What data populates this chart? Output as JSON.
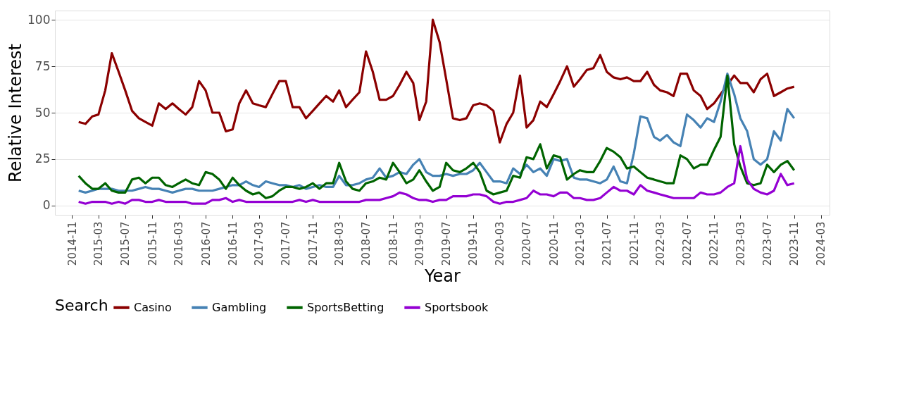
{
  "chart_data": {
    "type": "line",
    "xlabel": "Year",
    "ylabel": "Relative Interest",
    "legend_title": "Search",
    "legend": "bottom",
    "grid": "y",
    "line_style": "solid",
    "x": [
      "2014-12",
      "2015-01",
      "2015-02",
      "2015-03",
      "2015-04",
      "2015-05",
      "2015-06",
      "2015-07",
      "2015-08",
      "2015-09",
      "2015-10",
      "2015-11",
      "2015-12",
      "2016-01",
      "2016-02",
      "2016-03",
      "2016-04",
      "2016-05",
      "2016-06",
      "2016-07",
      "2016-08",
      "2016-09",
      "2016-10",
      "2016-11",
      "2016-12",
      "2017-01",
      "2017-02",
      "2017-03",
      "2017-04",
      "2017-05",
      "2017-06",
      "2017-07",
      "2017-08",
      "2017-09",
      "2017-10",
      "2017-11",
      "2017-12",
      "2018-01",
      "2018-02",
      "2018-03",
      "2018-04",
      "2018-05",
      "2018-06",
      "2018-07",
      "2018-08",
      "2018-09",
      "2018-10",
      "2018-11",
      "2018-12",
      "2019-01",
      "2019-02",
      "2019-03",
      "2019-04",
      "2019-05",
      "2019-06",
      "2019-07",
      "2019-08",
      "2019-09",
      "2019-10",
      "2019-11",
      "2019-12",
      "2020-01",
      "2020-02",
      "2020-03",
      "2020-04",
      "2020-05",
      "2020-06",
      "2020-07",
      "2020-08",
      "2020-09",
      "2020-10",
      "2020-11",
      "2020-12",
      "2021-01",
      "2021-02",
      "2021-03",
      "2021-04",
      "2021-05",
      "2021-06",
      "2021-07",
      "2021-08",
      "2021-09",
      "2021-10",
      "2021-11",
      "2021-12",
      "2022-01",
      "2022-02",
      "2022-03",
      "2022-04",
      "2022-05",
      "2022-06",
      "2022-07",
      "2022-08",
      "2022-09",
      "2022-10",
      "2022-11",
      "2022-12",
      "2023-01",
      "2023-02",
      "2023-03",
      "2023-04",
      "2023-05",
      "2023-06",
      "2023-07",
      "2023-08",
      "2023-09",
      "2023-10",
      "2023-11"
    ],
    "xlim": [
      "2014-08-15",
      "2024-04-10"
    ],
    "xticks": [
      "2014-11",
      "2015-03",
      "2015-07",
      "2015-11",
      "2016-03",
      "2016-07",
      "2016-11",
      "2017-03",
      "2017-07",
      "2017-11",
      "2018-03",
      "2018-07",
      "2018-11",
      "2019-03",
      "2019-07",
      "2019-11",
      "2020-03",
      "2020-07",
      "2020-11",
      "2021-03",
      "2021-07",
      "2021-11",
      "2022-03",
      "2022-07",
      "2022-11",
      "2023-03",
      "2023-07",
      "2023-11",
      "2024-03"
    ],
    "ylim": [
      -5,
      105
    ],
    "yticks": [
      0,
      25,
      50,
      75,
      100
    ],
    "series": [
      {
        "name": "Casino",
        "color": "#8b0000",
        "values": [
          45,
          44,
          48,
          49,
          62,
          82,
          72,
          62,
          51,
          47,
          45,
          43,
          55,
          52,
          55,
          52,
          49,
          53,
          67,
          62,
          50,
          50,
          40,
          41,
          55,
          62,
          55,
          54,
          53,
          60,
          67,
          67,
          53,
          53,
          47,
          51,
          55,
          59,
          56,
          62,
          53,
          57,
          61,
          83,
          72,
          57,
          57,
          59,
          65,
          72,
          66,
          46,
          56,
          100,
          88,
          68,
          47,
          46,
          47,
          54,
          55,
          54,
          51,
          34,
          44,
          50,
          70,
          42,
          46,
          56,
          53,
          60,
          67,
          75,
          64,
          68,
          73,
          74,
          81,
          72,
          69,
          68,
          69,
          67,
          67,
          72,
          65,
          62,
          61,
          59,
          71,
          71,
          62,
          59,
          52,
          55,
          60,
          65,
          70,
          66,
          66,
          61,
          68,
          71,
          59,
          61,
          63,
          64
        ]
      },
      {
        "name": "Gambling",
        "color": "#4682b4",
        "values": [
          8,
          7,
          8,
          9,
          9,
          9,
          8,
          8,
          8,
          9,
          10,
          9,
          9,
          8,
          7,
          8,
          9,
          9,
          8,
          8,
          8,
          9,
          10,
          11,
          11,
          13,
          11,
          10,
          13,
          12,
          11,
          11,
          10,
          11,
          9,
          10,
          11,
          10,
          10,
          16,
          11,
          11,
          12,
          14,
          15,
          20,
          15,
          16,
          18,
          17,
          22,
          25,
          18,
          16,
          16,
          17,
          16,
          17,
          17,
          19,
          23,
          18,
          13,
          13,
          12,
          20,
          17,
          22,
          18,
          20,
          16,
          25,
          24,
          25,
          15,
          14,
          14,
          13,
          12,
          14,
          21,
          13,
          12,
          28,
          48,
          47,
          37,
          35,
          38,
          34,
          32,
          49,
          46,
          42,
          47,
          45,
          56,
          71,
          60,
          47,
          40,
          25,
          22,
          25,
          40,
          35,
          52,
          47
        ]
      },
      {
        "name": "SportsBetting",
        "color": "#006400",
        "values": [
          16,
          12,
          9,
          9,
          12,
          8,
          7,
          7,
          14,
          15,
          12,
          15,
          15,
          11,
          10,
          12,
          14,
          12,
          11,
          18,
          17,
          14,
          9,
          15,
          11,
          8,
          6,
          7,
          4,
          5,
          8,
          10,
          10,
          9,
          10,
          12,
          9,
          12,
          12,
          23,
          13,
          9,
          8,
          12,
          13,
          15,
          14,
          23,
          18,
          12,
          14,
          19,
          13,
          8,
          10,
          23,
          19,
          18,
          20,
          23,
          18,
          8,
          6,
          7,
          8,
          16,
          15,
          26,
          25,
          33,
          20,
          27,
          26,
          14,
          17,
          19,
          18,
          18,
          24,
          31,
          29,
          26,
          20,
          21,
          18,
          15,
          14,
          13,
          12,
          12,
          27,
          25,
          20,
          22,
          22,
          30,
          37,
          70,
          33,
          21,
          12,
          11,
          12,
          22,
          18,
          22,
          24,
          19
        ]
      },
      {
        "name": "Sportsbook",
        "color": "#9400d3",
        "values": [
          2,
          1,
          2,
          2,
          2,
          1,
          2,
          1,
          3,
          3,
          2,
          2,
          3,
          2,
          2,
          2,
          2,
          1,
          1,
          1,
          3,
          3,
          4,
          2,
          3,
          2,
          2,
          2,
          2,
          2,
          2,
          2,
          2,
          3,
          2,
          3,
          2,
          2,
          2,
          2,
          2,
          2,
          2,
          3,
          3,
          3,
          4,
          5,
          7,
          6,
          4,
          3,
          3,
          2,
          3,
          3,
          5,
          5,
          5,
          6,
          6,
          5,
          2,
          1,
          2,
          2,
          3,
          4,
          8,
          6,
          6,
          5,
          7,
          7,
          4,
          4,
          3,
          3,
          4,
          7,
          10,
          8,
          8,
          6,
          11,
          8,
          7,
          6,
          5,
          4,
          4,
          4,
          4,
          7,
          6,
          6,
          7,
          10,
          12,
          32,
          14,
          9,
          7,
          6,
          8,
          17,
          11,
          12
        ]
      }
    ]
  }
}
